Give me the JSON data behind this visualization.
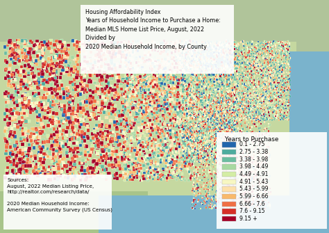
{
  "title_lines": [
    "Housing Affordability Index",
    "Years of Household Income to Purchase a Home:",
    "Median MLS Home List Price, August, 2022",
    "Divided by",
    "2020 Median Household Income, by County"
  ],
  "legend_title": "Years to Purchase",
  "legend_entries": [
    {
      "label": "0.1 - 2.75",
      "color": "#2166ac"
    },
    {
      "label": "2.75 - 3.38",
      "color": "#4dac9e"
    },
    {
      "label": "3.38 - 3.98",
      "color": "#6bbda0"
    },
    {
      "label": "3.98 - 4.49",
      "color": "#a8d9a1"
    },
    {
      "label": "4.49 - 4.91",
      "color": "#d4eda4"
    },
    {
      "label": "4.91 - 5.43",
      "color": "#f7f7c2"
    },
    {
      "label": "5.43 - 5.99",
      "color": "#fde0aa"
    },
    {
      "label": "5.99 - 6.66",
      "color": "#f9b96a"
    },
    {
      "label": "6.66 - 7.6",
      "color": "#f07044"
    },
    {
      "label": "7.6 - 9.15",
      "color": "#d62f27"
    },
    {
      "label": "9.15 +",
      "color": "#a50026"
    }
  ],
  "source_lines": [
    "Sources:",
    "August, 2022 Median Listing Price,",
    "http://realtor.com/research/data/",
    "",
    "2020 Median Household Income:",
    "American Community Survey (US Census)"
  ],
  "ocean_color": "#7ab3cc",
  "land_bg_color": "#c5d8a0",
  "mexico_color": "#a8c48a",
  "canada_color": "#b8d4a0",
  "title_box_color": "#ffffff",
  "legend_box_color": "#ffffff",
  "source_box_color": "#ffffff",
  "title_fontsize": 5.8,
  "legend_fontsize": 5.5,
  "source_fontsize": 5.2,
  "fig_width": 4.74,
  "fig_height": 3.35,
  "dpi": 100
}
